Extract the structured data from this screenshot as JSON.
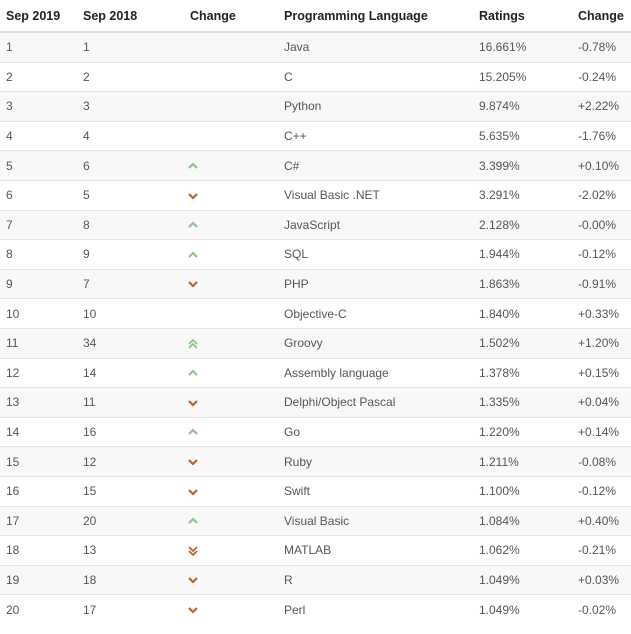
{
  "colors": {
    "up": "#8cc48b",
    "down": "#c0602b"
  },
  "table": {
    "headers": [
      "Sep 2019",
      "Sep 2018",
      "Change",
      "Programming Language",
      "Ratings",
      "Change"
    ],
    "rows": [
      {
        "sep2019": "1",
        "sep2018": "1",
        "trend": "none",
        "language": "Java",
        "rating": "16.661%",
        "change": "-0.78%"
      },
      {
        "sep2019": "2",
        "sep2018": "2",
        "trend": "none",
        "language": "C",
        "rating": "15.205%",
        "change": "-0.24%"
      },
      {
        "sep2019": "3",
        "sep2018": "3",
        "trend": "none",
        "language": "Python",
        "rating": "9.874%",
        "change": "+2.22%"
      },
      {
        "sep2019": "4",
        "sep2018": "4",
        "trend": "none",
        "language": "C++",
        "rating": "5.635%",
        "change": "-1.76%"
      },
      {
        "sep2019": "5",
        "sep2018": "6",
        "trend": "up",
        "language": "C#",
        "rating": "3.399%",
        "change": "+0.10%"
      },
      {
        "sep2019": "6",
        "sep2018": "5",
        "trend": "down",
        "language": "Visual Basic .NET",
        "rating": "3.291%",
        "change": "-2.02%"
      },
      {
        "sep2019": "7",
        "sep2018": "8",
        "trend": "up",
        "language": "JavaScript",
        "rating": "2.128%",
        "change": "-0.00%"
      },
      {
        "sep2019": "8",
        "sep2018": "9",
        "trend": "up",
        "language": "SQL",
        "rating": "1.944%",
        "change": "-0.12%"
      },
      {
        "sep2019": "9",
        "sep2018": "7",
        "trend": "down",
        "language": "PHP",
        "rating": "1.863%",
        "change": "-0.91%"
      },
      {
        "sep2019": "10",
        "sep2018": "10",
        "trend": "none",
        "language": "Objective-C",
        "rating": "1.840%",
        "change": "+0.33%"
      },
      {
        "sep2019": "11",
        "sep2018": "34",
        "trend": "double-up",
        "language": "Groovy",
        "rating": "1.502%",
        "change": "+1.20%"
      },
      {
        "sep2019": "12",
        "sep2018": "14",
        "trend": "up",
        "language": "Assembly language",
        "rating": "1.378%",
        "change": "+0.15%"
      },
      {
        "sep2019": "13",
        "sep2018": "11",
        "trend": "down",
        "language": "Delphi/Object Pascal",
        "rating": "1.335%",
        "change": "+0.04%"
      },
      {
        "sep2019": "14",
        "sep2018": "16",
        "trend": "up",
        "language": "Go",
        "rating": "1.220%",
        "change": "+0.14%"
      },
      {
        "sep2019": "15",
        "sep2018": "12",
        "trend": "down",
        "language": "Ruby",
        "rating": "1.211%",
        "change": "-0.08%"
      },
      {
        "sep2019": "16",
        "sep2018": "15",
        "trend": "down",
        "language": "Swift",
        "rating": "1.100%",
        "change": "-0.12%"
      },
      {
        "sep2019": "17",
        "sep2018": "20",
        "trend": "up",
        "language": "Visual Basic",
        "rating": "1.084%",
        "change": "+0.40%"
      },
      {
        "sep2019": "18",
        "sep2018": "13",
        "trend": "double-down",
        "language": "MATLAB",
        "rating": "1.062%",
        "change": "-0.21%"
      },
      {
        "sep2019": "19",
        "sep2018": "18",
        "trend": "down",
        "language": "R",
        "rating": "1.049%",
        "change": "+0.03%"
      },
      {
        "sep2019": "20",
        "sep2018": "17",
        "trend": "down",
        "language": "Perl",
        "rating": "1.049%",
        "change": "-0.02%"
      }
    ]
  }
}
